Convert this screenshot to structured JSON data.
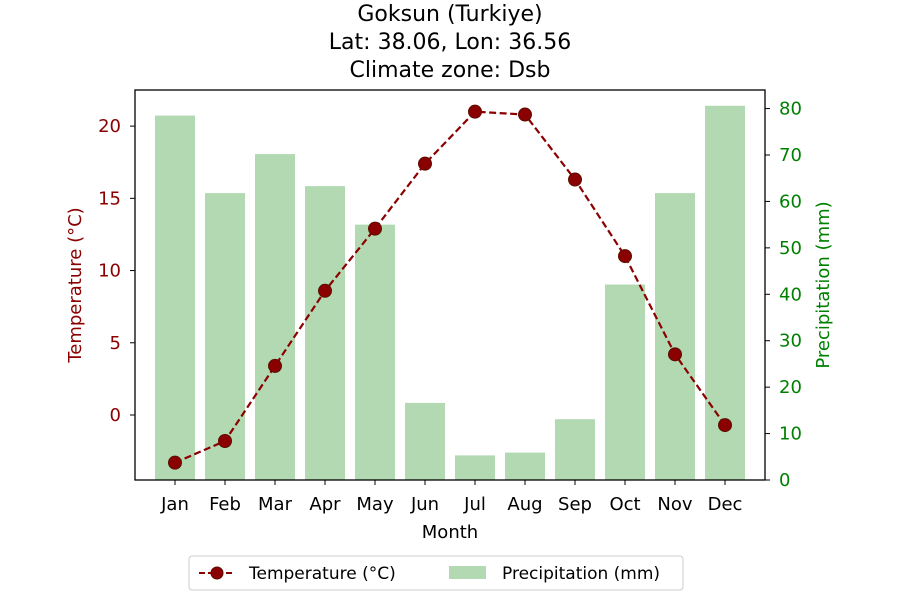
{
  "chart_data": {
    "type": "bar+line",
    "title_lines": [
      "Goksun (Turkiye)",
      "Lat: 38.06, Lon: 36.56",
      "Climate zone: Dsb"
    ],
    "xlabel": "Month",
    "ylabel_left": "Temperature (°C)",
    "ylabel_right": "Precipitation (mm)",
    "categories": [
      "Jan",
      "Feb",
      "Mar",
      "Apr",
      "May",
      "Jun",
      "Jul",
      "Aug",
      "Sep",
      "Oct",
      "Nov",
      "Dec"
    ],
    "temperature": [
      -3.3,
      -1.8,
      3.4,
      8.6,
      12.9,
      17.4,
      21.0,
      20.8,
      16.3,
      11.0,
      4.2,
      -0.7
    ],
    "precipitation": [
      78.5,
      61.8,
      70.2,
      63.3,
      55.0,
      16.6,
      5.3,
      5.9,
      13.1,
      42.1,
      61.8,
      80.6
    ],
    "ylim_left": [
      -4.5,
      22.5
    ],
    "ylim_right": [
      0,
      84
    ],
    "yticks_left": [
      0,
      5,
      10,
      15,
      20
    ],
    "yticks_right": [
      0,
      10,
      20,
      30,
      40,
      50,
      60,
      70,
      80
    ],
    "legend": [
      "Temperature (°C)",
      "Precipitation (mm)"
    ],
    "legend_position": "bottom-center",
    "colors": {
      "temperature": "#8b0000",
      "temperature_marker_edge": "#5a0e00",
      "precipitation": "#b2d9b2",
      "left_axis": "#8b0000",
      "right_axis": "#008000"
    }
  }
}
